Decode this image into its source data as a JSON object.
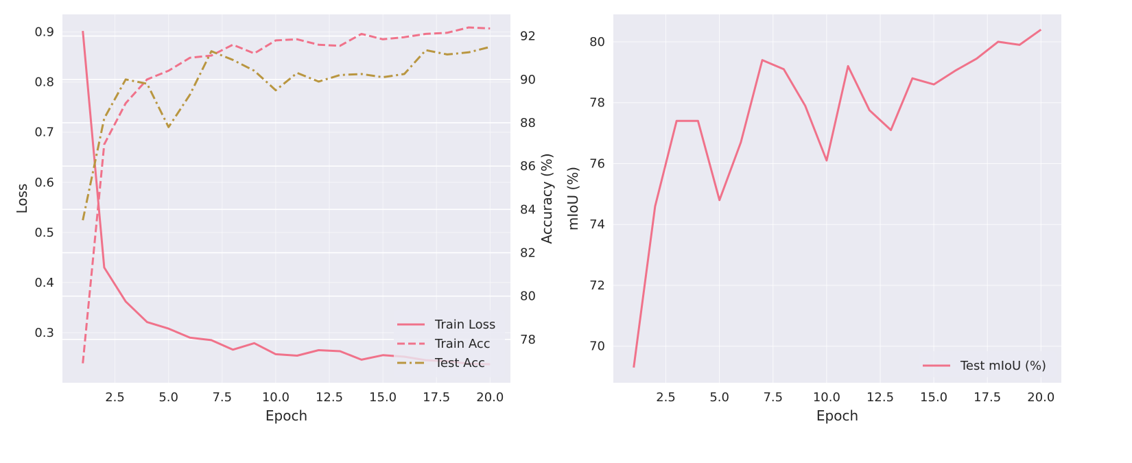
{
  "colors": {
    "background": "#eaeaf2",
    "grid": "#ffffff",
    "pink": "#f0728a",
    "gold": "#b99640",
    "text": "#262626"
  },
  "chart_data": [
    {
      "type": "line",
      "xlabel": "Epoch",
      "ylabel": "Loss",
      "ylabel_right": "Accuracy (%)",
      "xlim": [
        0.05,
        20.95
      ],
      "ylim": [
        0.2,
        0.935
      ],
      "ylim_right": [
        76.0,
        93.0
      ],
      "x_ticks": [
        "2.5",
        "5.0",
        "7.5",
        "10.0",
        "12.5",
        "15.0",
        "17.5",
        "20.0"
      ],
      "y_ticks": [
        "0.3",
        "0.4",
        "0.5",
        "0.6",
        "0.7",
        "0.8",
        "0.9"
      ],
      "y_ticks_right": [
        "78",
        "80",
        "82",
        "84",
        "86",
        "88",
        "90",
        "92"
      ],
      "grid": true,
      "legend_position": "lower-right",
      "x": [
        1,
        2,
        3,
        4,
        5,
        6,
        7,
        8,
        9,
        10,
        11,
        12,
        13,
        14,
        15,
        16,
        17,
        18,
        19,
        20
      ],
      "series": [
        {
          "name": "Train Loss",
          "axis": "left",
          "style": "solid",
          "color": "#f0728a",
          "values": [
            0.902,
            0.43,
            0.362,
            0.321,
            0.308,
            0.29,
            0.285,
            0.266,
            0.279,
            0.257,
            0.254,
            0.265,
            0.263,
            0.246,
            0.255,
            0.252,
            0.245,
            0.243,
            0.238,
            0.237
          ]
        },
        {
          "name": "Train Acc",
          "axis": "right",
          "style": "dashed",
          "color": "#f0728a",
          "values": [
            76.9,
            87.0,
            88.9,
            90.0,
            90.4,
            91.0,
            91.1,
            91.6,
            91.2,
            91.8,
            91.85,
            91.6,
            91.55,
            92.1,
            91.85,
            91.95,
            92.1,
            92.15,
            92.4,
            92.35
          ]
        },
        {
          "name": "Test Acc",
          "axis": "right",
          "style": "dashdot",
          "color": "#b99640",
          "values": [
            83.5,
            88.2,
            90.0,
            89.8,
            87.8,
            89.3,
            91.3,
            90.9,
            90.4,
            89.5,
            90.3,
            89.9,
            90.2,
            90.25,
            90.1,
            90.25,
            91.35,
            91.15,
            91.25,
            91.5
          ]
        }
      ]
    },
    {
      "type": "line",
      "xlabel": "Epoch",
      "ylabel": "mIoU (%)",
      "xlim": [
        0.05,
        20.95
      ],
      "ylim": [
        68.8,
        80.9
      ],
      "x_ticks": [
        "2.5",
        "5.0",
        "7.5",
        "10.0",
        "12.5",
        "15.0",
        "17.5",
        "20.0"
      ],
      "y_ticks": [
        "70",
        "72",
        "74",
        "76",
        "78",
        "80"
      ],
      "grid": true,
      "legend_position": "lower-right",
      "x": [
        1,
        2,
        3,
        4,
        5,
        6,
        7,
        8,
        9,
        10,
        11,
        12,
        13,
        14,
        15,
        16,
        17,
        18,
        19,
        20
      ],
      "series": [
        {
          "name": "Test mIoU (%)",
          "style": "solid",
          "color": "#f0728a",
          "values": [
            69.3,
            74.6,
            77.4,
            77.4,
            74.8,
            76.7,
            79.4,
            79.1,
            77.9,
            76.1,
            79.2,
            77.75,
            77.1,
            78.8,
            78.6,
            79.05,
            79.45,
            80.0,
            79.9,
            80.4
          ]
        }
      ]
    }
  ]
}
